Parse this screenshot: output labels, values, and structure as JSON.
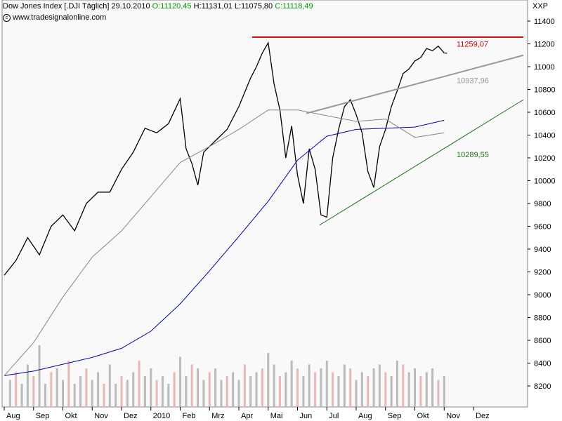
{
  "header": {
    "instrument": "Dow Jones Index [.DJI",
    "period": "Täglich]",
    "date": "29.10.2010",
    "open": "O:11120,45",
    "high": "H:11131,01",
    "low": "L:11075,80",
    "close": "C:11118,49",
    "source": "www.tradesignalonline.com"
  },
  "colors": {
    "price": "#000000",
    "ma_long": "#0000aa",
    "ma_short": "#888888",
    "resistance": "#cc0000",
    "upper_trend": "#999999",
    "lower_trend": "#1f6f1f",
    "volume_up": "#bbbbbb",
    "volume_down": "#e8b8b8",
    "plot_bg": "#f9f9f9"
  },
  "chart_data": {
    "type": "line",
    "title": "Dow Jones Index [.DJI Täglich]",
    "unit_label": "XXP",
    "x_ticks": [
      "Aug",
      "Sep",
      "Okt",
      "Nov",
      "Dez",
      "2010",
      "Feb",
      "Mrz",
      "Apr",
      "Mai",
      "Jun",
      "Jul",
      "Aug",
      "Sep",
      "Okt",
      "Nov",
      "Dez"
    ],
    "y_ticks": [
      11400,
      11200,
      11000,
      10800,
      10600,
      10400,
      10200,
      10000,
      9800,
      9600,
      9400,
      9200,
      9000,
      8800,
      8600,
      8400,
      8200
    ],
    "ylim": [
      8080,
      11500
    ],
    "xlim": [
      0,
      17.7
    ],
    "grid": false,
    "series": [
      {
        "name": "price",
        "x": [
          0.0,
          0.4,
          0.8,
          1.2,
          1.6,
          2.0,
          2.4,
          2.8,
          3.2,
          3.6,
          4.0,
          4.4,
          4.8,
          5.2,
          5.6,
          6.0,
          6.2,
          6.4,
          6.6,
          6.8,
          7.2,
          7.6,
          8.0,
          8.4,
          8.6,
          8.8,
          9.0,
          9.2,
          9.4,
          9.6,
          9.8,
          10.0,
          10.2,
          10.4,
          10.6,
          10.8,
          11.0,
          11.2,
          11.4,
          11.6,
          11.8,
          12.0,
          12.2,
          12.4,
          12.6,
          12.8,
          13.0,
          13.2,
          13.4,
          13.6,
          13.8,
          14.0,
          14.2,
          14.4,
          14.6,
          14.8,
          15.0,
          15.1
        ],
        "values": [
          9170,
          9300,
          9500,
          9350,
          9600,
          9700,
          9560,
          9800,
          9900,
          9900,
          10100,
          10250,
          10460,
          10420,
          10500,
          10720,
          10280,
          10150,
          9960,
          10250,
          10350,
          10450,
          10650,
          10900,
          11000,
          11120,
          11210,
          10850,
          10620,
          10200,
          10480,
          10050,
          9800,
          10280,
          10100,
          9700,
          9680,
          10200,
          10450,
          10650,
          10710,
          10580,
          10420,
          10080,
          9940,
          10300,
          10450,
          10650,
          10790,
          10940,
          10980,
          11050,
          11080,
          11160,
          11140,
          11180,
          11120,
          11118
        ]
      },
      {
        "name": "ma_long",
        "x": [
          0,
          1,
          2,
          3,
          4,
          5,
          6,
          7,
          8,
          9,
          10,
          11,
          12,
          13,
          14,
          15
        ],
        "values": [
          8290,
          8330,
          8390,
          8450,
          8530,
          8680,
          8920,
          9210,
          9510,
          9820,
          10180,
          10390,
          10450,
          10460,
          10470,
          10530
        ]
      },
      {
        "name": "ma_short",
        "x": [
          0,
          1,
          2,
          3,
          4,
          5,
          6,
          7,
          8,
          9,
          10,
          11,
          12,
          13,
          14,
          15
        ],
        "values": [
          8290,
          8580,
          8980,
          9330,
          9560,
          9860,
          10160,
          10300,
          10450,
          10620,
          10620,
          10570,
          10520,
          10540,
          10380,
          10420
        ]
      }
    ],
    "volume": {
      "x": [
        0.2,
        0.4,
        0.6,
        0.8,
        1.0,
        1.2,
        1.4,
        1.6,
        1.8,
        2.0,
        2.2,
        2.4,
        2.6,
        2.8,
        3.0,
        3.2,
        3.4,
        3.6,
        3.8,
        4.0,
        4.2,
        4.4,
        4.6,
        4.8,
        5.0,
        5.2,
        5.4,
        5.6,
        5.8,
        6.0,
        6.2,
        6.4,
        6.6,
        6.8,
        7.0,
        7.2,
        7.4,
        7.6,
        7.8,
        8.0,
        8.2,
        8.4,
        8.6,
        8.8,
        9.0,
        9.2,
        9.4,
        9.6,
        9.8,
        10.0,
        10.2,
        10.4,
        10.6,
        10.8,
        11.0,
        11.2,
        11.4,
        11.6,
        11.8,
        12.0,
        12.2,
        12.4,
        12.6,
        12.8,
        13.0,
        13.2,
        13.4,
        13.6,
        13.8,
        14.0,
        14.2,
        14.4,
        14.6,
        14.8,
        15.0
      ],
      "values": [
        35,
        45,
        30,
        55,
        40,
        80,
        30,
        45,
        50,
        35,
        60,
        30,
        40,
        50,
        35,
        45,
        30,
        55,
        30,
        40,
        35,
        45,
        60,
        40,
        50,
        35,
        40,
        30,
        45,
        65,
        40,
        55,
        50,
        35,
        45,
        50,
        35,
        40,
        45,
        35,
        55,
        40,
        45,
        50,
        70,
        55,
        40,
        45,
        60,
        50,
        40,
        55,
        45,
        50,
        60,
        45,
        40,
        55,
        50,
        35,
        45,
        40,
        50,
        55,
        45,
        40,
        60,
        55,
        45,
        50,
        40,
        45,
        50,
        35,
        40
      ]
    },
    "annotations": [
      {
        "label": "11259,07",
        "value": 11259.07,
        "kind": "resistance"
      },
      {
        "label": "10937,96",
        "value": 10937.96,
        "kind": "upper_trend"
      },
      {
        "label": "10289,55",
        "value": 10289.55,
        "kind": "lower_trend"
      }
    ],
    "trendlines": [
      {
        "kind": "resistance",
        "x": [
          8.45,
          17.7
        ],
        "values": [
          11259.07,
          11259.07
        ]
      },
      {
        "kind": "upper_trend",
        "x": [
          10.3,
          17.7
        ],
        "values": [
          10590,
          11100
        ]
      },
      {
        "kind": "lower_trend",
        "x": [
          10.75,
          17.7
        ],
        "values": [
          9610,
          10710
        ]
      }
    ]
  }
}
